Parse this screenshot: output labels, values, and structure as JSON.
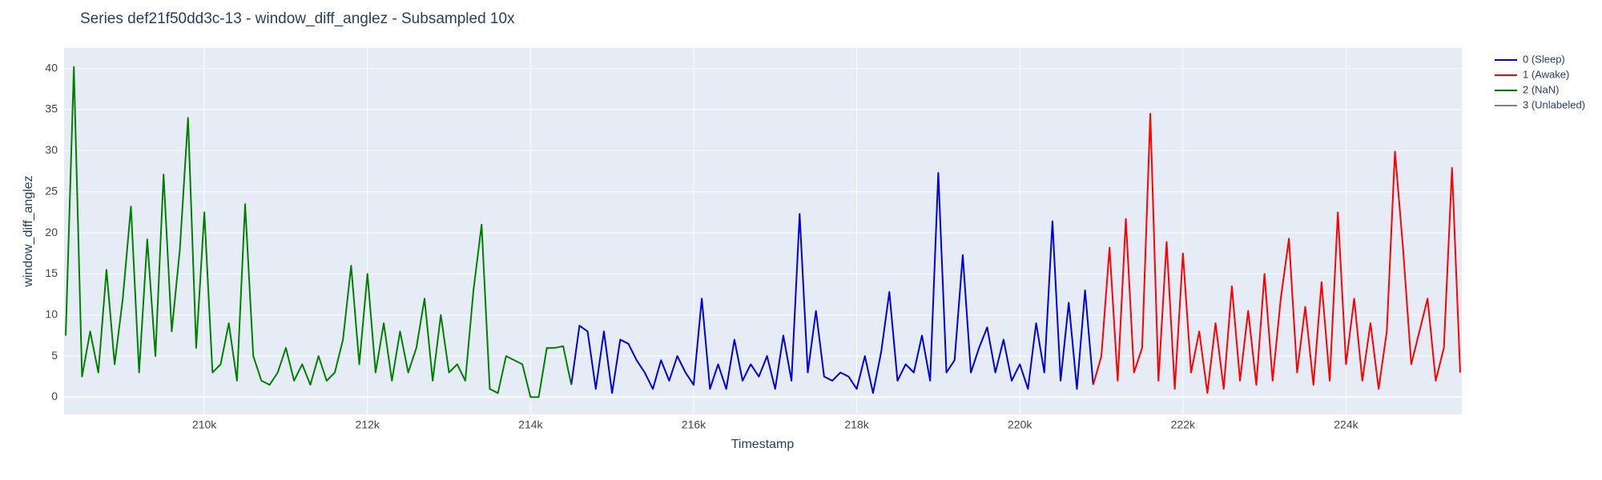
{
  "chart_data": {
    "type": "line",
    "title": "Series def21f50dd3c-13 - window_diff_anglez - Subsampled 10x",
    "x_label": "Timestamp",
    "y_label": "window_diff_anglez",
    "xlim": [
      208280,
      225420
    ],
    "ylim": [
      -2.1,
      42.5
    ],
    "xticks": [
      {
        "value": 210000,
        "label": "210k"
      },
      {
        "value": 212000,
        "label": "212k"
      },
      {
        "value": 214000,
        "label": "214k"
      },
      {
        "value": 216000,
        "label": "216k"
      },
      {
        "value": 218000,
        "label": "218k"
      },
      {
        "value": 220000,
        "label": "220k"
      },
      {
        "value": 222000,
        "label": "222k"
      },
      {
        "value": 224000,
        "label": "224k"
      }
    ],
    "yticks": [
      0,
      5,
      10,
      15,
      20,
      25,
      30,
      35,
      40
    ],
    "grid": true,
    "legend": "top-right",
    "series": [
      {
        "name": "0 (Sleep)",
        "color": "#0000dd",
        "x": [
          214500,
          214600,
          214700,
          214800,
          214900,
          215000,
          215100,
          215200,
          215300,
          215400,
          215500,
          215600,
          215700,
          215800,
          215900,
          216000,
          216100,
          216200,
          216300,
          216400,
          216500,
          216600,
          216700,
          216800,
          216900,
          217000,
          217100,
          217200,
          217300,
          217400,
          217500,
          217600,
          217700,
          217800,
          217900,
          218000,
          218100,
          218200,
          218300,
          218400,
          218500,
          218600,
          218700,
          218800,
          218900,
          219000,
          219100,
          219200,
          219300,
          219400,
          219500,
          219600,
          219700,
          219800,
          219900,
          220000,
          220100,
          220200,
          220300,
          220400,
          220500,
          220600,
          220700,
          220800,
          220900
        ],
        "values": [
          1.5,
          8.7,
          8,
          1,
          8,
          0.5,
          7,
          6.5,
          4.5,
          3,
          1,
          4.5,
          2,
          5,
          3,
          1.5,
          12,
          1,
          4,
          1,
          7,
          2,
          4,
          2.5,
          5,
          1,
          7.5,
          2,
          22.3,
          3,
          10.5,
          2.5,
          2,
          3,
          2.5,
          1,
          5,
          0.5,
          5.5,
          12.8,
          2,
          4,
          3,
          7.5,
          2,
          27.3,
          3,
          4.5,
          17.3,
          3,
          6,
          8.5,
          3,
          7,
          2,
          4,
          1,
          9,
          3,
          21.4,
          2,
          11.5,
          1,
          13,
          1.5
        ]
      },
      {
        "name": "1 (Awake)",
        "color": "#ff0000",
        "x": [
          220900,
          221000,
          221100,
          221200,
          221300,
          221400,
          221500,
          221600,
          221700,
          221800,
          221900,
          222000,
          222100,
          222200,
          222300,
          222400,
          222500,
          222600,
          222700,
          222800,
          222900,
          223000,
          223100,
          223200,
          223300,
          223400,
          223500,
          223600,
          223700,
          223800,
          223900,
          224000,
          224100,
          224200,
          224300,
          224400,
          224500,
          224600,
          224700,
          224800,
          224900,
          225000,
          225100,
          225200,
          225300,
          225400
        ],
        "values": [
          1.5,
          5,
          18.2,
          2,
          21.7,
          3,
          6,
          34.5,
          2,
          18.9,
          1,
          17.5,
          3,
          8,
          0.5,
          9,
          1,
          13.5,
          2,
          10.5,
          1.5,
          15,
          2,
          12,
          19.3,
          3,
          11,
          1.5,
          14,
          2,
          22.5,
          4,
          12,
          2,
          9,
          1,
          8,
          29.9,
          18,
          4,
          8,
          12,
          2,
          6,
          27.9,
          3
        ]
      },
      {
        "name": "2 (NaN)",
        "color": "#008000",
        "x": [
          208300,
          208400,
          208500,
          208600,
          208700,
          208800,
          208900,
          209000,
          209100,
          209200,
          209300,
          209400,
          209500,
          209600,
          209700,
          209800,
          209900,
          210000,
          210100,
          210200,
          210300,
          210400,
          210500,
          210600,
          210700,
          210800,
          210900,
          211000,
          211100,
          211200,
          211300,
          211400,
          211500,
          211600,
          211700,
          211800,
          211900,
          212000,
          212100,
          212200,
          212300,
          212400,
          212500,
          212600,
          212700,
          212800,
          212900,
          213000,
          213100,
          213200,
          213300,
          213400,
          213500,
          213600,
          213700,
          213800,
          213900,
          214000,
          214100,
          214200,
          214300,
          214400,
          214500
        ],
        "values": [
          7.5,
          40.2,
          2.5,
          8,
          3,
          15.5,
          4,
          12,
          23.2,
          3,
          19.2,
          5,
          27.1,
          8,
          18,
          34,
          6,
          22.5,
          3,
          4,
          9,
          2,
          23.5,
          5,
          2,
          1.5,
          3,
          6,
          2,
          4,
          1.5,
          5,
          2,
          3,
          7,
          16,
          4,
          15,
          3,
          9,
          2,
          8,
          3,
          6,
          12,
          2,
          10,
          3,
          4,
          2,
          13,
          21,
          1,
          0.5,
          5,
          4.5,
          4,
          0,
          0,
          6,
          6,
          6.2,
          1.5
        ]
      },
      {
        "name": "3 (Unlabeled)",
        "color": "#808080",
        "x": [],
        "values": []
      }
    ]
  }
}
